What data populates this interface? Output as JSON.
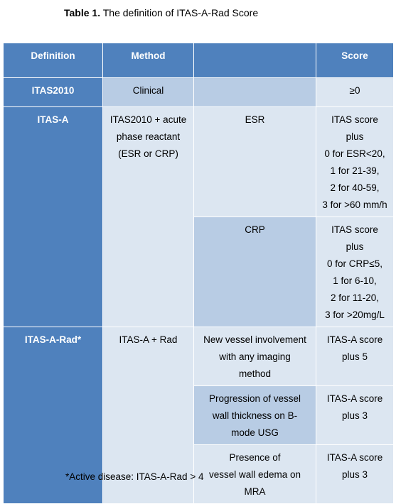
{
  "caption": {
    "label": "Table 1.",
    "text": " The definition of ITAS-A-Rad Score"
  },
  "table": {
    "headers": [
      "Definition",
      "Method",
      "",
      "Score"
    ],
    "itas2010": {
      "definition": "ITAS2010",
      "method": "Clinical",
      "sub": "",
      "score": "≥0"
    },
    "itas_a": {
      "definition": "ITAS-A",
      "method": "ITAS2010 + acute\nphase reactant\n(ESR or CRP)",
      "rows": [
        {
          "sub": "ESR",
          "score": "ITAS score\nplus\n0 for ESR<20,\n1 for 21-39,\n2 for 40-59,\n3 for >60 mm/h"
        },
        {
          "sub": "CRP",
          "score": "ITAS score\nplus\n0 for CRP≤5,\n1 for 6-10,\n2 for 11-20,\n3 for >20mg/L"
        }
      ]
    },
    "itas_a_rad": {
      "definition": "ITAS-A-Rad*",
      "method": "ITAS-A + Rad",
      "rows": [
        {
          "sub": "New vessel involvement\nwith any imaging\nmethod",
          "score": "ITAS-A score\nplus 5"
        },
        {
          "sub": "Progression of vessel\nwall thickness on B-\nmode USG",
          "score": "ITAS-A score\nplus 3"
        },
        {
          "sub": "Presence of\nvessel wall edema on\nMRA",
          "score": "ITAS-A score\nplus 3"
        }
      ]
    }
  },
  "footnote": "*Active disease: ITAS-A-Rad > 4"
}
